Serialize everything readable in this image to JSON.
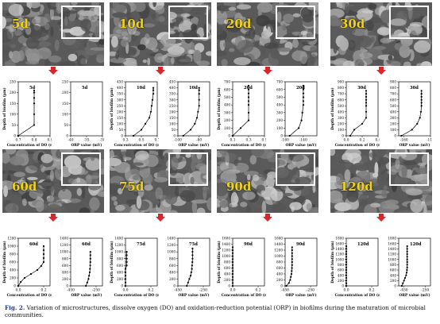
{
  "panels": [
    {
      "label": "5d"
    },
    {
      "label": "10d"
    },
    {
      "label": "20d"
    },
    {
      "label": "30d"
    },
    {
      "label": "60d"
    },
    {
      "label": "75d"
    },
    {
      "label": "90d"
    },
    {
      "label": "120d"
    }
  ],
  "caption": {
    "prefix": "Fig. 2.",
    "text": " Variation of microstructures, dissolve oxygen (DO) and oxidation-reduction potential (ORP) in biofilms during the maturation of microbial communities."
  },
  "colors": {
    "arrow": "#d8262b",
    "label": "#f1d21b",
    "line": "#000000"
  },
  "chart_data": [
    {
      "type": "line",
      "panel": "5d",
      "series": [
        {
          "x": [
            0.7,
            0.8,
            0.8,
            0.8,
            0.8,
            0.8,
            0.8
          ],
          "y": [
            0,
            50,
            100,
            150,
            175,
            200,
            210
          ]
        }
      ],
      "ylabel": "Depth of biofilm (μm)",
      "xlabel": "Concentration of DO (mg/L)",
      "xticks": [
        "0.7",
        "0.8",
        "0.9"
      ],
      "yticks": [
        "0",
        "50",
        "100",
        "150",
        "200",
        "250"
      ],
      "xlim": [
        0.7,
        0.9
      ],
      "ylim": [
        0,
        250
      ]
    },
    {
      "type": "line",
      "panel": "5d",
      "series": [
        {
          "x": [
            -25,
            -12,
            -10,
            -9,
            -9,
            -8,
            -8,
            -8
          ],
          "y": [
            0,
            50,
            100,
            120,
            150,
            175,
            200,
            210
          ]
        }
      ],
      "xlabel": "ORP value (mV)",
      "xticks": [
        "-40",
        "-35",
        "-30"
      ],
      "yticks": [
        "0",
        "50",
        "100",
        "150",
        "200",
        "250"
      ],
      "xlim": [
        -40,
        -30
      ],
      "ylim": [
        0,
        250
      ]
    },
    {
      "type": "line",
      "panel": "10d",
      "series": [
        {
          "x": [
            0.4,
            0.5,
            0.55,
            0.6,
            0.62,
            0.63,
            0.64,
            0.65,
            0.65,
            0.65
          ],
          "y": [
            0,
            50,
            100,
            150,
            200,
            250,
            300,
            350,
            380,
            400
          ]
        }
      ],
      "ylabel": "Depth of biofilm (μm)",
      "xlabel": "Concentration of DO (mg/L)",
      "xticks": [
        "0.3",
        "0.5",
        "0.7"
      ],
      "yticks": [
        "0",
        "50",
        "100",
        "150",
        "200",
        "250",
        "300",
        "350",
        "400",
        "450"
      ],
      "xlim": [
        0.3,
        0.7
      ],
      "ylim": [
        0,
        450
      ]
    },
    {
      "type": "line",
      "panel": "10d",
      "series": [
        {
          "x": [
            -95,
            -88,
            -84,
            -82,
            -81,
            -80,
            -80,
            -80,
            -80,
            -80
          ],
          "y": [
            0,
            50,
            100,
            150,
            200,
            250,
            300,
            350,
            380,
            400
          ]
        }
      ],
      "xlabel": "ORP value (mV)",
      "xticks": [
        "-100",
        "-80"
      ],
      "yticks": [
        "0",
        "50",
        "100",
        "150",
        "200",
        "250",
        "300",
        "350",
        "400",
        "450"
      ],
      "xlim": [
        -100,
        -70
      ],
      "ylim": [
        0,
        450
      ]
    },
    {
      "type": "line",
      "panel": "20d",
      "series": [
        {
          "x": [
            0.1,
            0.2,
            0.3,
            0.3,
            0.3,
            0.3,
            0.3,
            0.3,
            0.3,
            0.3
          ],
          "y": [
            0,
            100,
            200,
            300,
            400,
            450,
            500,
            550,
            600,
            650
          ]
        }
      ],
      "ylabel": "Depth of biofilm (μm)",
      "xlabel": "Concentration of DO (mg/L)",
      "xticks": [
        "0.1",
        "0.3",
        "0.5"
      ],
      "yticks": [
        "0",
        "100",
        "200",
        "300",
        "400",
        "500",
        "600",
        "700"
      ],
      "xlim": [
        0.1,
        0.5
      ],
      "ylim": [
        0,
        700
      ]
    },
    {
      "type": "line",
      "panel": "20d",
      "series": [
        {
          "x": [
            -155,
            -145,
            -142,
            -141,
            -140,
            -140,
            -140,
            -140,
            -140,
            -140
          ],
          "y": [
            0,
            100,
            200,
            300,
            400,
            450,
            500,
            550,
            600,
            650
          ]
        }
      ],
      "xlabel": "ORP value (mV)",
      "xticks": [
        "-160",
        "-140"
      ],
      "yticks": [
        "0",
        "100",
        "200",
        "300",
        "400",
        "500",
        "600",
        "700"
      ],
      "xlim": [
        -160,
        -125
      ],
      "ylim": [
        0,
        700
      ]
    },
    {
      "type": "line",
      "panel": "30d",
      "series": [
        {
          "x": [
            0.05,
            0.1,
            0.2,
            0.25,
            0.25,
            0.25,
            0.25,
            0.25,
            0.25,
            0.25,
            0.25
          ],
          "y": [
            0,
            100,
            200,
            300,
            400,
            500,
            550,
            600,
            650,
            700,
            750
          ]
        }
      ],
      "ylabel": "Depth of biofilm (μm)",
      "xlabel": "Concentration of DO (mg/L)",
      "xticks": [
        "0.0",
        "0.2",
        "0.4"
      ],
      "yticks": [
        "0",
        "100",
        "200",
        "300",
        "400",
        "500",
        "600",
        "700",
        "800",
        "900"
      ],
      "xlim": [
        0,
        0.4
      ],
      "ylim": [
        0,
        900
      ]
    },
    {
      "type": "line",
      "panel": "30d",
      "series": [
        {
          "x": [
            -165,
            -145,
            -135,
            -130,
            -128,
            -127,
            -127,
            -127,
            -127,
            -127,
            -127
          ],
          "y": [
            0,
            100,
            200,
            300,
            400,
            500,
            550,
            600,
            650,
            700,
            750
          ]
        }
      ],
      "xlabel": "ORP value (mV)",
      "xticks": [
        "-160",
        "-110"
      ],
      "yticks": [
        "0",
        "100",
        "200",
        "300",
        "400",
        "500",
        "600",
        "700",
        "800",
        "900"
      ],
      "xlim": [
        -170,
        -110
      ],
      "ylim": [
        0,
        900
      ]
    },
    {
      "type": "line",
      "panel": "60d",
      "series": [
        {
          "x": [
            0,
            0.02,
            0.05,
            0.1,
            0.15,
            0.18,
            0.2,
            0.2,
            0.2,
            0.2,
            0.2
          ],
          "y": [
            0,
            100,
            200,
            300,
            400,
            500,
            600,
            700,
            800,
            900,
            1000
          ]
        }
      ],
      "ylabel": "Depth of biofilm (μm)",
      "xlabel": "Concentration of DO (mg/L)",
      "xticks": [
        "0.0",
        "0.2"
      ],
      "yticks": [
        "0",
        "200",
        "400",
        "600",
        "800",
        "1000",
        "1200"
      ],
      "xlim": [
        0,
        0.25
      ],
      "ylim": [
        0,
        1200
      ]
    },
    {
      "type": "line",
      "panel": "60d",
      "series": [
        {
          "x": [
            -330,
            -320,
            -310,
            -305,
            -300,
            -298,
            -296,
            -295,
            -295,
            -295,
            -295
          ],
          "y": [
            0,
            100,
            200,
            300,
            400,
            500,
            600,
            700,
            800,
            900,
            1000
          ]
        }
      ],
      "xlabel": "ORP value (mV)",
      "xticks": [
        "-450",
        "-250"
      ],
      "yticks": [
        "0",
        "200",
        "400",
        "600",
        "800",
        "1000",
        "1200",
        "1400"
      ],
      "xlim": [
        -450,
        -200
      ],
      "ylim": [
        0,
        1400
      ]
    },
    {
      "type": "line",
      "panel": "75d",
      "series": [
        {
          "x": [
            0,
            0,
            0,
            0,
            0,
            0,
            0.01,
            0.01,
            0.01,
            0.01,
            0.01
          ],
          "y": [
            0,
            100,
            200,
            300,
            400,
            500,
            600,
            700,
            800,
            900,
            1000
          ]
        }
      ],
      "ylabel": "Depth of biofilm (μm)",
      "xlabel": "Concentration of DO (mg/L)",
      "xticks": [
        "0.0",
        "0.2"
      ],
      "yticks": [
        "0",
        "200",
        "400",
        "600",
        "800",
        "1000",
        "1200",
        "1400"
      ],
      "xlim": [
        0,
        0.25
      ],
      "ylim": [
        0,
        1400
      ]
    },
    {
      "type": "line",
      "panel": "75d",
      "series": [
        {
          "x": [
            -380,
            -370,
            -360,
            -350,
            -345,
            -340,
            -338,
            -336,
            -335,
            -335,
            -335,
            -335
          ],
          "y": [
            0,
            100,
            200,
            300,
            400,
            500,
            600,
            700,
            800,
            900,
            1000,
            1100
          ]
        }
      ],
      "xlabel": "ORP value (mV)",
      "xticks": [
        "-450",
        "-250"
      ],
      "yticks": [
        "0",
        "200",
        "400",
        "600",
        "800",
        "1000",
        "1200",
        "1400"
      ],
      "xlim": [
        -450,
        -200
      ],
      "ylim": [
        0,
        1400
      ]
    },
    {
      "type": "line",
      "panel": "90d",
      "series": [
        {
          "x": [
            0,
            0,
            0,
            0,
            0,
            0,
            0,
            0,
            0,
            0,
            0,
            0,
            0,
            0
          ],
          "y": [
            0,
            100,
            200,
            300,
            400,
            500,
            600,
            700,
            800,
            900,
            1000,
            1100,
            1200,
            1300
          ]
        }
      ],
      "ylabel": "Depth of biofilm (μm)",
      "xlabel": "Concentration of DO (mg/L)",
      "xticks": [
        "0.0",
        "0.2"
      ],
      "yticks": [
        "0",
        "200",
        "400",
        "600",
        "800",
        "1000",
        "1200",
        "1400",
        "1600"
      ],
      "xlim": [
        0,
        0.25
      ],
      "ylim": [
        0,
        1600
      ]
    },
    {
      "type": "line",
      "panel": "90d",
      "series": [
        {
          "x": [
            -440,
            -420,
            -410,
            -405,
            -400,
            -398,
            -396,
            -395,
            -395,
            -395,
            -395,
            -395,
            -395,
            -395
          ],
          "y": [
            0,
            100,
            200,
            300,
            400,
            500,
            600,
            700,
            800,
            900,
            1000,
            1100,
            1200,
            1300
          ]
        }
      ],
      "xlabel": "ORP value (mV)",
      "xticks": [
        "-450",
        "-250"
      ],
      "yticks": [
        "0",
        "200",
        "400",
        "600",
        "800",
        "1000",
        "1200",
        "1400",
        "1600"
      ],
      "xlim": [
        -450,
        -200
      ],
      "ylim": [
        0,
        1600
      ]
    },
    {
      "type": "line",
      "panel": "120d",
      "series": [
        {
          "x": [
            0,
            0,
            0,
            0,
            0,
            0,
            0,
            0,
            0,
            0,
            0,
            0,
            0,
            0,
            0,
            0
          ],
          "y": [
            0,
            100,
            200,
            300,
            400,
            500,
            600,
            700,
            800,
            900,
            1000,
            1100,
            1200,
            1300,
            1400,
            1500
          ]
        }
      ],
      "ylabel": "Depth of biofilm (μm)",
      "xlabel": "Concentration of DO (mg/L)",
      "xticks": [
        "0.0",
        "0.2"
      ],
      "yticks": [
        "0",
        "200",
        "400",
        "600",
        "800",
        "1000",
        "1200",
        "1400",
        "1600",
        "1800"
      ],
      "xlim": [
        0,
        0.25
      ],
      "ylim": [
        0,
        1800
      ]
    },
    {
      "type": "line",
      "panel": "120d",
      "series": [
        {
          "x": [
            -470,
            -460,
            -450,
            -440,
            -430,
            -425,
            -422,
            -420,
            -420,
            -420,
            -420,
            -420,
            -420,
            -420,
            -420,
            -420
          ],
          "y": [
            0,
            100,
            200,
            300,
            400,
            500,
            600,
            700,
            800,
            900,
            1000,
            1100,
            1200,
            1300,
            1400,
            1500
          ]
        }
      ],
      "xlabel": "ORP value (mV)",
      "xticks": [
        "-450",
        "-250"
      ],
      "yticks": [
        "0",
        "200",
        "400",
        "600",
        "800",
        "1000",
        "1200",
        "1400",
        "1600",
        "1800"
      ],
      "xlim": [
        -500,
        -200
      ],
      "ylim": [
        0,
        1800
      ]
    }
  ]
}
